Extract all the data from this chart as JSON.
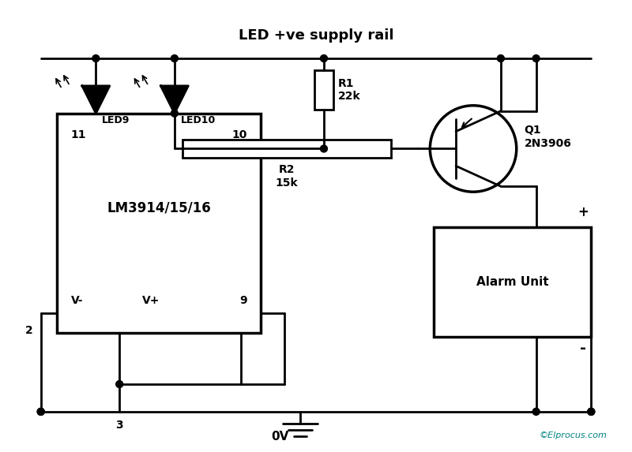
{
  "title": "LED +ve supply rail",
  "bg_color": "#ffffff",
  "line_color": "#000000",
  "figsize": [
    8.0,
    5.73
  ],
  "dpi": 100,
  "copyright": "©Elprocus.com",
  "ic_label": "LM3914/15/16",
  "alarm_label": "Alarm Unit",
  "transistor_label": "Q1\n2N3906",
  "r1_label": "R1\n22k",
  "r2_label": "R2\n15k",
  "led9_label": "LED9",
  "led10_label": "LED10",
  "pin2_label": "2",
  "pin3_label": "3",
  "pin9_label": "9",
  "pin10_label": "10",
  "pin11_label": "11",
  "vminus_label": "V-",
  "vplus_label": "V+",
  "gnd_label": "0V"
}
